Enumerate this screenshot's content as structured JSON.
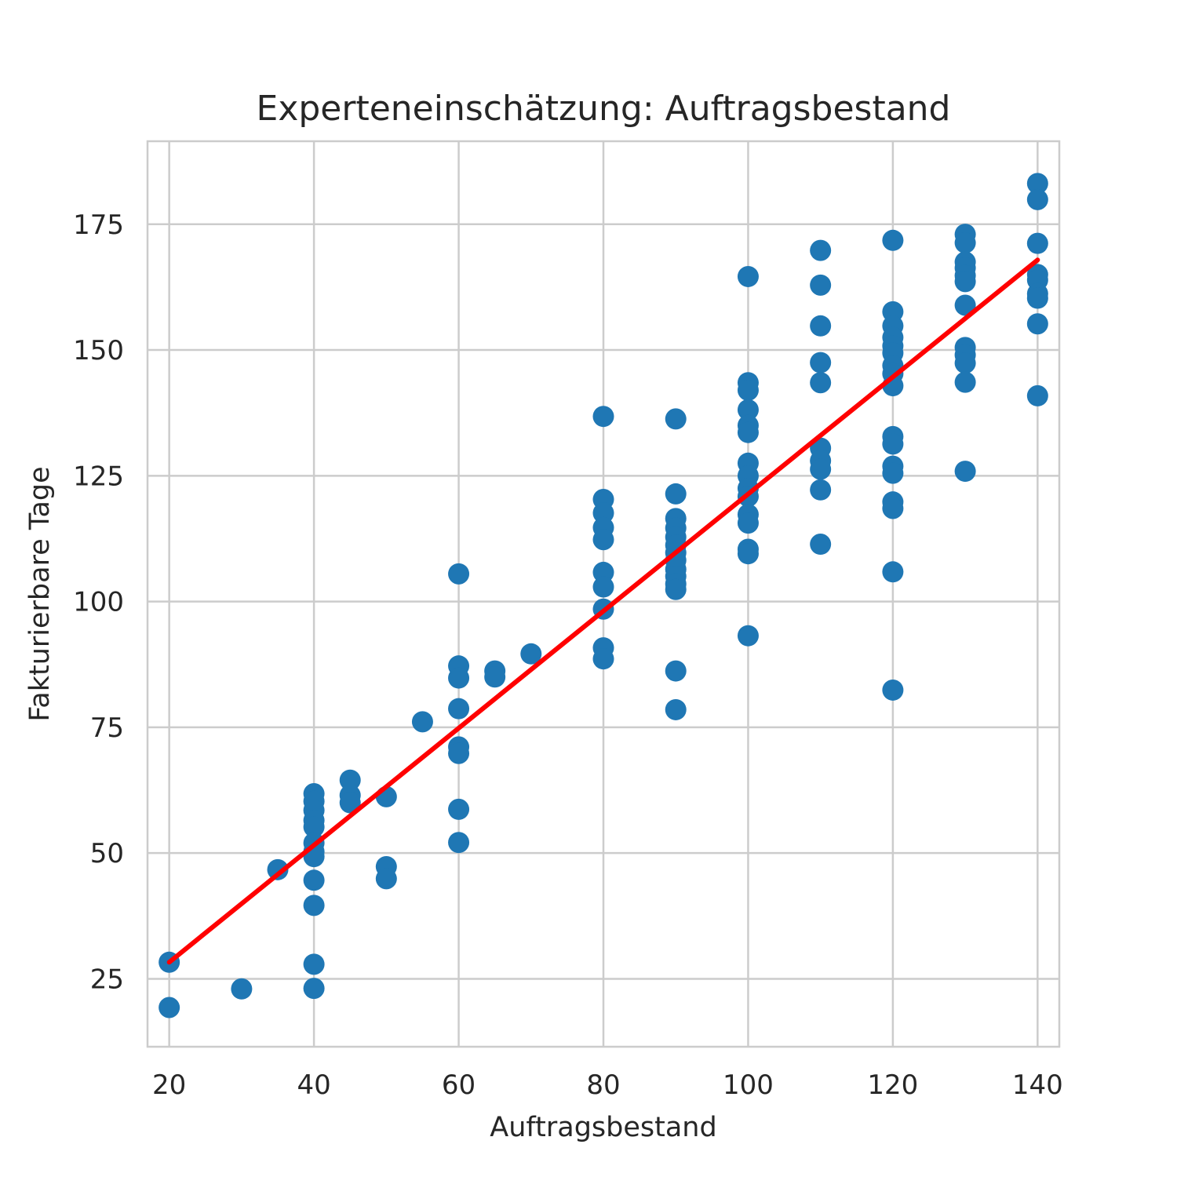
{
  "chart_data": {
    "type": "scatter",
    "title": "Experteneinschätzung: Auftragsbestand",
    "xlabel": "Auftragsbestand",
    "ylabel": "Fakturierbare Tage",
    "xlim": [
      17,
      143
    ],
    "ylim": [
      11.5,
      191.5
    ],
    "xticks": [
      20,
      40,
      60,
      80,
      100,
      120,
      140
    ],
    "yticks": [
      25,
      50,
      75,
      100,
      125,
      150,
      175
    ],
    "grid": true,
    "colors": {
      "points": "#1f77b4",
      "fit_line": "#ff0000",
      "grid": "#cccccc",
      "frame": "#cccccc",
      "text": "#262626"
    },
    "series": [
      {
        "type": "scatter",
        "points": [
          [
            20,
            28.3
          ],
          [
            20,
            19.3
          ],
          [
            30,
            23.0
          ],
          [
            35,
            46.7
          ],
          [
            40,
            61.8
          ],
          [
            40,
            60.3
          ],
          [
            40,
            58.5
          ],
          [
            40,
            56.5
          ],
          [
            40,
            55.2
          ],
          [
            40,
            52.0
          ],
          [
            40,
            50.3
          ],
          [
            40,
            49.3
          ],
          [
            40,
            44.6
          ],
          [
            40,
            39.6
          ],
          [
            40,
            27.9
          ],
          [
            40,
            23.1
          ],
          [
            45,
            64.5
          ],
          [
            45,
            61.5
          ],
          [
            45,
            60.0
          ],
          [
            50,
            61.2
          ],
          [
            50,
            47.3
          ],
          [
            50,
            44.9
          ],
          [
            55,
            76.1
          ],
          [
            60,
            105.5
          ],
          [
            60,
            87.2
          ],
          [
            60,
            84.8
          ],
          [
            60,
            78.7
          ],
          [
            60,
            71.1
          ],
          [
            60,
            69.8
          ],
          [
            60,
            58.7
          ],
          [
            60,
            52.1
          ],
          [
            65,
            86.2
          ],
          [
            65,
            85.0
          ],
          [
            70,
            89.6
          ],
          [
            80,
            136.8
          ],
          [
            80,
            120.3
          ],
          [
            80,
            117.6
          ],
          [
            80,
            114.7
          ],
          [
            80,
            112.3
          ],
          [
            80,
            105.8
          ],
          [
            80,
            102.9
          ],
          [
            80,
            98.5
          ],
          [
            80,
            90.8
          ],
          [
            80,
            88.6
          ],
          [
            90,
            136.3
          ],
          [
            90,
            121.4
          ],
          [
            90,
            116.5
          ],
          [
            90,
            114.6
          ],
          [
            90,
            112.8
          ],
          [
            90,
            111.2
          ],
          [
            90,
            109.7
          ],
          [
            90,
            108.2
          ],
          [
            90,
            106.4
          ],
          [
            90,
            105.0
          ],
          [
            90,
            103.5
          ],
          [
            90,
            102.4
          ],
          [
            90,
            86.2
          ],
          [
            90,
            78.5
          ],
          [
            100,
            164.6
          ],
          [
            100,
            143.5
          ],
          [
            100,
            142.0
          ],
          [
            100,
            138.1
          ],
          [
            100,
            135.0
          ],
          [
            100,
            133.6
          ],
          [
            100,
            127.5
          ],
          [
            100,
            125.0
          ],
          [
            100,
            122.5
          ],
          [
            100,
            120.9
          ],
          [
            100,
            117.3
          ],
          [
            100,
            115.6
          ],
          [
            100,
            110.4
          ],
          [
            100,
            109.5
          ],
          [
            100,
            93.2
          ],
          [
            110,
            169.8
          ],
          [
            110,
            162.9
          ],
          [
            110,
            154.8
          ],
          [
            110,
            147.5
          ],
          [
            110,
            143.5
          ],
          [
            110,
            130.5
          ],
          [
            110,
            128.0
          ],
          [
            110,
            126.3
          ],
          [
            110,
            122.2
          ],
          [
            110,
            111.4
          ],
          [
            120,
            171.8
          ],
          [
            120,
            157.6
          ],
          [
            120,
            154.8
          ],
          [
            120,
            152.5
          ],
          [
            120,
            150.8
          ],
          [
            120,
            149.4
          ],
          [
            120,
            146.9
          ],
          [
            120,
            145.3
          ],
          [
            120,
            142.9
          ],
          [
            120,
            132.8
          ],
          [
            120,
            131.3
          ],
          [
            120,
            126.9
          ],
          [
            120,
            125.5
          ],
          [
            120,
            119.8
          ],
          [
            120,
            118.5
          ],
          [
            120,
            105.9
          ],
          [
            120,
            82.4
          ],
          [
            130,
            173.0
          ],
          [
            130,
            171.3
          ],
          [
            130,
            167.5
          ],
          [
            130,
            166.3
          ],
          [
            130,
            164.8
          ],
          [
            130,
            163.6
          ],
          [
            130,
            158.9
          ],
          [
            130,
            150.5
          ],
          [
            130,
            149.0
          ],
          [
            130,
            147.4
          ],
          [
            130,
            143.6
          ],
          [
            130,
            125.9
          ],
          [
            140,
            183.1
          ],
          [
            140,
            179.9
          ],
          [
            140,
            171.2
          ],
          [
            140,
            165.0
          ],
          [
            140,
            163.9
          ],
          [
            140,
            161.2
          ],
          [
            140,
            160.3
          ],
          [
            140,
            155.2
          ],
          [
            140,
            140.9
          ]
        ]
      },
      {
        "type": "line",
        "x": [
          20,
          140
        ],
        "y": [
          28.3,
          167.9
        ]
      }
    ]
  }
}
